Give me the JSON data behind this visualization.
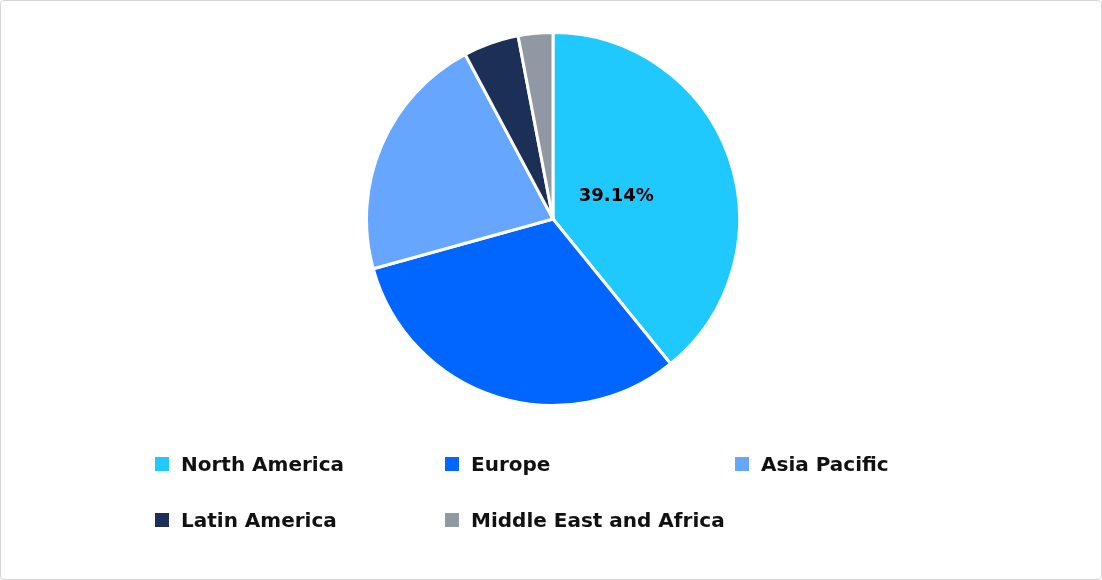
{
  "chart_data": {
    "type": "pie",
    "categories": [
      "North America",
      "Europe",
      "Asia Pacific",
      "Latin America",
      "Middle East and Africa"
    ],
    "values": [
      39.14,
      31.56,
      21.5,
      4.8,
      3.0
    ],
    "colors": [
      "#1fc9fd",
      "#0066ff",
      "#66a6ff",
      "#1c2f57",
      "#9198a4"
    ],
    "value_labels": [
      "39.14%",
      null,
      null,
      null,
      null
    ],
    "legend": "bottom"
  }
}
